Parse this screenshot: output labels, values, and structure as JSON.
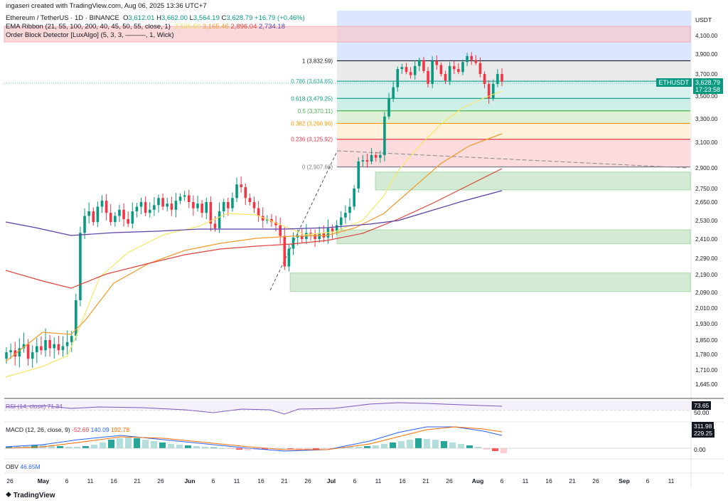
{
  "header": {
    "created": "ingaseri created with TradingView.com, Aug 06, 2025 13:36 UTC+7",
    "symbol": "Ethereum / TetherUS · 1D · BINANCE",
    "ohlc": {
      "o_label": "O",
      "o": "3,612.01",
      "h_label": "H",
      "h": "3,662.00",
      "l_label": "L",
      "l": "3,564.19",
      "c_label": "C",
      "c": "3,628.79",
      "chg": "+16.79 (+0.46%)"
    },
    "ema_label": "EMA Ribbon (21, 55, 100, 200, 40, 45, 50, 55, close, 1)",
    "ema_values": [
      "3,536.50",
      "3,165.46",
      "2,896.04",
      "2,734.18"
    ],
    "ob_label": "Order Block Detector [LuxAlgo] (5, 3, 3, ———, 1, Wick)"
  },
  "axis": {
    "currency": "USDT",
    "price_ticks": [
      "4,100.00",
      "3,900.00",
      "3,700.00",
      "3,500.00",
      "3,300.00",
      "3,100.00",
      "2,900.00",
      "2,750.00",
      "2,650.00",
      "2,530.00",
      "2,410.00",
      "2,290.00",
      "2,190.00",
      "2,090.00",
      "2,010.00",
      "1,930.00",
      "1,850.00",
      "1,780.00",
      "1,710.00",
      "1,645.00"
    ],
    "date_ticks": [
      "26",
      "May",
      "6",
      "11",
      "16",
      "21",
      "26",
      "Jun",
      "6",
      "11",
      "16",
      "21",
      "26",
      "Jul",
      "6",
      "11",
      "16",
      "21",
      "26",
      "Aug",
      "6",
      "11",
      "16",
      "21",
      "26",
      "Sep",
      "6",
      "11"
    ],
    "bold_dates": [
      "May",
      "Jun",
      "Jul",
      "Aug",
      "Sep"
    ]
  },
  "last_price": {
    "symbol": "ETHUSDT",
    "price": "3,628.79",
    "countdown": "17:23:58"
  },
  "fib": [
    {
      "label": "1 (3,832.59)",
      "color": "#131722"
    },
    {
      "label": "0.786 (3,634.65)",
      "color": "#26a69a"
    },
    {
      "label": "0.618 (3,479.25)",
      "color": "#089981"
    },
    {
      "label": "0.5 (3,370.11)",
      "color": "#4caf50"
    },
    {
      "label": "0.382 (3,260.96)",
      "color": "#ff9800"
    },
    {
      "label": "0.236 (3,125.92)",
      "color": "#f23645"
    },
    {
      "label": "0 (2,907.66)",
      "color": "#787b86"
    }
  ],
  "rsi": {
    "label": "RSI (14, close)",
    "value": "71.34",
    "axis_values": [
      "73.65",
      "50.00"
    ]
  },
  "macd": {
    "label": "MACD (12, 26, close, 9)",
    "values": [
      "-52.69",
      "140.09",
      "192.78"
    ],
    "axis_values": [
      "311.98",
      "229.25",
      "0.00"
    ]
  },
  "obv": {
    "label": "OBV",
    "value": "46.65M"
  },
  "footer": {
    "brand": "TradingView"
  },
  "colors": {
    "up": "#089981",
    "down": "#f23645",
    "ema21": "#f5e663",
    "ema55": "#f09a2a",
    "ema100": "#e0413a",
    "ema200": "#5b3ea6"
  },
  "chart_data": {
    "type": "candlestick",
    "symbol": "Ethereum / TetherUS",
    "interval": "1D",
    "ylim": [
      1610,
      4200
    ],
    "last": {
      "open": 3612.01,
      "high": 3662.0,
      "low": 3564.19,
      "close": 3628.79
    },
    "ema_ribbon": {
      "ema21": 3536.5,
      "ema55": 3165.46,
      "ema100": 2896.04,
      "ema200": 2734.18
    },
    "fib_levels": [
      {
        "ratio": 1,
        "price": 3832.59
      },
      {
        "ratio": 0.786,
        "price": 3634.65
      },
      {
        "ratio": 0.618,
        "price": 3479.25
      },
      {
        "ratio": 0.5,
        "price": 3370.11
      },
      {
        "ratio": 0.382,
        "price": 3260.96
      },
      {
        "ratio": 0.236,
        "price": 3125.92
      },
      {
        "ratio": 0,
        "price": 2907.66
      }
    ],
    "order_blocks": [
      {
        "type": "bearish",
        "top": 4200,
        "bottom": 4030
      },
      {
        "type": "bullish",
        "top": 2870,
        "bottom": 2740
      },
      {
        "type": "bullish",
        "top": 2470,
        "bottom": 2380
      },
      {
        "type": "bullish",
        "top": 2200,
        "bottom": 2095
      }
    ]
  }
}
